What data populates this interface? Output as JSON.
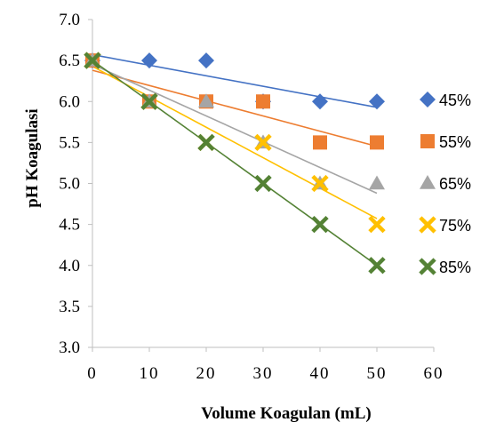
{
  "chart_data": {
    "type": "scatter",
    "xlabel": "Volume Koagulan (mL)",
    "ylabel": "pH Koagulasi",
    "xlim": [
      0,
      60
    ],
    "ylim": [
      3.0,
      7.0
    ],
    "x_ticks": [
      "0",
      "10",
      "20",
      "30",
      "40",
      "50",
      "60"
    ],
    "y_ticks": [
      "3.0",
      "3.5",
      "4.0",
      "4.5",
      "5.0",
      "5.5",
      "6.0",
      "6.5",
      "7.0"
    ],
    "grid": false,
    "legend_position": "right",
    "trendlines": "linear",
    "x": [
      0,
      10,
      20,
      30,
      40,
      50
    ],
    "series": [
      {
        "name": "45%",
        "marker": "diamond",
        "color": "#4472C4",
        "values": [
          6.5,
          6.5,
          6.5,
          6.0,
          6.0,
          6.0
        ]
      },
      {
        "name": "55%",
        "marker": "square",
        "color": "#ED7D31",
        "values": [
          6.5,
          6.0,
          6.0,
          6.0,
          5.5,
          5.5
        ]
      },
      {
        "name": "65%",
        "marker": "triangle",
        "color": "#A5A5A5",
        "values": [
          6.5,
          6.0,
          6.0,
          5.5,
          5.0,
          5.0
        ]
      },
      {
        "name": "75%",
        "marker": "x",
        "color": "#FFC000",
        "values": [
          6.5,
          6.0,
          5.5,
          5.5,
          5.0,
          4.5
        ]
      },
      {
        "name": "85%",
        "marker": "x",
        "color": "#548235",
        "values": [
          6.5,
          6.0,
          5.5,
          5.0,
          4.5,
          4.0
        ]
      }
    ]
  }
}
